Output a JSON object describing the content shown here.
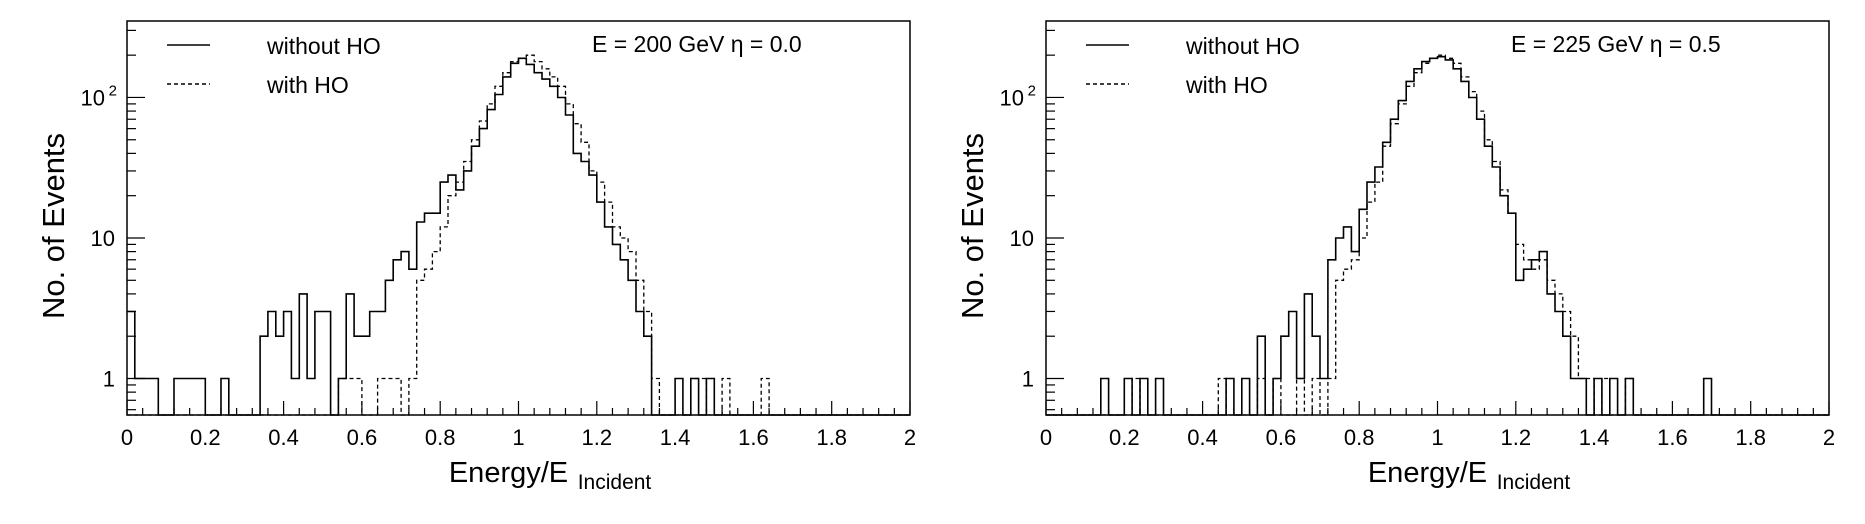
{
  "chart_data": [
    {
      "type": "step-histogram",
      "annotation": "E = 200 GeV  η = 0.0",
      "xlabel_main": "Energy/E",
      "xlabel_sub": "Incident",
      "ylabel": "No. of Events",
      "xlim": [
        0,
        2
      ],
      "ylim": [
        0.55,
        350
      ],
      "yscale": "log",
      "x_ticks": [
        "0",
        "0.2",
        "0.4",
        "0.6",
        "0.8",
        "1",
        "1.2",
        "1.4",
        "1.6",
        "1.8",
        "2"
      ],
      "y_ticks": [
        {
          "value": 1,
          "label": "1"
        },
        {
          "value": 10,
          "label": "10"
        },
        {
          "value": 100,
          "label": "10",
          "sup": "2"
        }
      ],
      "legend_position": "top-left",
      "bin_width": 0.02,
      "series": [
        {
          "name": "without HO",
          "style": "solid",
          "bins": [
            [
              0.0,
              3
            ],
            [
              0.02,
              1
            ],
            [
              0.04,
              1
            ],
            [
              0.06,
              1
            ],
            [
              0.12,
              1
            ],
            [
              0.14,
              1
            ],
            [
              0.16,
              1
            ],
            [
              0.18,
              1
            ],
            [
              0.24,
              1
            ],
            [
              0.34,
              2
            ],
            [
              0.36,
              3
            ],
            [
              0.38,
              2
            ],
            [
              0.4,
              3
            ],
            [
              0.42,
              1
            ],
            [
              0.44,
              4
            ],
            [
              0.46,
              1
            ],
            [
              0.48,
              3
            ],
            [
              0.5,
              3
            ],
            [
              0.54,
              1
            ],
            [
              0.56,
              4
            ],
            [
              0.58,
              2
            ],
            [
              0.6,
              2
            ],
            [
              0.62,
              3
            ],
            [
              0.64,
              3
            ],
            [
              0.66,
              5
            ],
            [
              0.68,
              7
            ],
            [
              0.7,
              8
            ],
            [
              0.72,
              6
            ],
            [
              0.74,
              13
            ],
            [
              0.76,
              15
            ],
            [
              0.78,
              15
            ],
            [
              0.8,
              25
            ],
            [
              0.82,
              28
            ],
            [
              0.84,
              22
            ],
            [
              0.86,
              30
            ],
            [
              0.88,
              45
            ],
            [
              0.9,
              60
            ],
            [
              0.92,
              82
            ],
            [
              0.94,
              105
            ],
            [
              0.96,
              140
            ],
            [
              0.98,
              175
            ],
            [
              1.0,
              190
            ],
            [
              1.02,
              172
            ],
            [
              1.04,
              150
            ],
            [
              1.06,
              135
            ],
            [
              1.08,
              120
            ],
            [
              1.1,
              100
            ],
            [
              1.12,
              75
            ],
            [
              1.14,
              40
            ],
            [
              1.16,
              35
            ],
            [
              1.18,
              28
            ],
            [
              1.2,
              18
            ],
            [
              1.22,
              12
            ],
            [
              1.24,
              9
            ],
            [
              1.26,
              7
            ],
            [
              1.28,
              5
            ],
            [
              1.3,
              3
            ],
            [
              1.32,
              2
            ],
            [
              1.4,
              1
            ],
            [
              1.44,
              1
            ],
            [
              1.48,
              1
            ]
          ]
        },
        {
          "name": "with HO",
          "style": "dashed",
          "bins": [
            [
              0.54,
              1
            ],
            [
              0.56,
              1
            ],
            [
              0.58,
              1
            ],
            [
              0.64,
              1
            ],
            [
              0.66,
              1
            ],
            [
              0.68,
              1
            ],
            [
              0.72,
              1
            ],
            [
              0.74,
              5
            ],
            [
              0.76,
              6
            ],
            [
              0.78,
              8
            ],
            [
              0.8,
              12
            ],
            [
              0.82,
              20
            ],
            [
              0.84,
              25
            ],
            [
              0.86,
              35
            ],
            [
              0.88,
              50
            ],
            [
              0.9,
              68
            ],
            [
              0.92,
              90
            ],
            [
              0.94,
              120
            ],
            [
              0.96,
              150
            ],
            [
              0.98,
              180
            ],
            [
              1.0,
              190
            ],
            [
              1.02,
              200
            ],
            [
              1.04,
              180
            ],
            [
              1.06,
              160
            ],
            [
              1.08,
              140
            ],
            [
              1.1,
              120
            ],
            [
              1.12,
              90
            ],
            [
              1.14,
              65
            ],
            [
              1.16,
              48
            ],
            [
              1.18,
              30
            ],
            [
              1.2,
              25
            ],
            [
              1.22,
              18
            ],
            [
              1.24,
              12
            ],
            [
              1.26,
              10
            ],
            [
              1.28,
              8
            ],
            [
              1.3,
              5
            ],
            [
              1.32,
              3
            ],
            [
              1.34,
              1
            ],
            [
              1.44,
              1
            ],
            [
              1.46,
              1
            ],
            [
              1.52,
              1
            ],
            [
              1.62,
              1
            ]
          ]
        }
      ]
    },
    {
      "type": "step-histogram",
      "annotation": "E = 225 GeV  η = 0.5",
      "xlabel_main": "Energy/E",
      "xlabel_sub": "Incident",
      "ylabel": "No. of Events",
      "xlim": [
        0,
        2
      ],
      "ylim": [
        0.55,
        350
      ],
      "yscale": "log",
      "x_ticks": [
        "0",
        "0.2",
        "0.4",
        "0.6",
        "0.8",
        "1",
        "1.2",
        "1.4",
        "1.6",
        "1.8",
        "2"
      ],
      "y_ticks": [
        {
          "value": 1,
          "label": "1"
        },
        {
          "value": 10,
          "label": "10"
        },
        {
          "value": 100,
          "label": "10",
          "sup": "2"
        }
      ],
      "legend_position": "top-left",
      "bin_width": 0.02,
      "series": [
        {
          "name": "without HO",
          "style": "solid",
          "bins": [
            [
              0.14,
              1
            ],
            [
              0.2,
              1
            ],
            [
              0.24,
              1
            ],
            [
              0.28,
              1
            ],
            [
              0.46,
              1
            ],
            [
              0.5,
              1
            ],
            [
              0.54,
              2
            ],
            [
              0.58,
              1
            ],
            [
              0.6,
              2
            ],
            [
              0.62,
              3
            ],
            [
              0.64,
              1
            ],
            [
              0.66,
              4
            ],
            [
              0.68,
              2
            ],
            [
              0.7,
              1
            ],
            [
              0.72,
              7
            ],
            [
              0.74,
              10
            ],
            [
              0.76,
              12
            ],
            [
              0.78,
              8
            ],
            [
              0.8,
              16
            ],
            [
              0.82,
              25
            ],
            [
              0.84,
              32
            ],
            [
              0.86,
              48
            ],
            [
              0.88,
              70
            ],
            [
              0.9,
              95
            ],
            [
              0.92,
              130
            ],
            [
              0.94,
              160
            ],
            [
              0.96,
              180
            ],
            [
              0.98,
              190
            ],
            [
              1.0,
              195
            ],
            [
              1.02,
              185
            ],
            [
              1.04,
              160
            ],
            [
              1.06,
              130
            ],
            [
              1.08,
              100
            ],
            [
              1.1,
              70
            ],
            [
              1.12,
              45
            ],
            [
              1.14,
              32
            ],
            [
              1.16,
              20
            ],
            [
              1.18,
              15
            ],
            [
              1.2,
              5
            ],
            [
              1.22,
              6
            ],
            [
              1.24,
              7
            ],
            [
              1.26,
              8
            ],
            [
              1.28,
              4
            ],
            [
              1.3,
              3
            ],
            [
              1.32,
              2
            ],
            [
              1.34,
              1
            ],
            [
              1.36,
              1
            ],
            [
              1.4,
              1
            ],
            [
              1.44,
              1
            ],
            [
              1.48,
              1
            ],
            [
              1.68,
              1
            ]
          ]
        },
        {
          "name": "with HO",
          "style": "dashed",
          "bins": [
            [
              0.22,
              1
            ],
            [
              0.44,
              1
            ],
            [
              0.54,
              1
            ],
            [
              0.58,
              1
            ],
            [
              0.64,
              1
            ],
            [
              0.68,
              1
            ],
            [
              0.72,
              1
            ],
            [
              0.74,
              5
            ],
            [
              0.76,
              6
            ],
            [
              0.78,
              7
            ],
            [
              0.8,
              10
            ],
            [
              0.82,
              18
            ],
            [
              0.84,
              25
            ],
            [
              0.86,
              45
            ],
            [
              0.88,
              65
            ],
            [
              0.9,
              90
            ],
            [
              0.92,
              120
            ],
            [
              0.94,
              150
            ],
            [
              0.96,
              175
            ],
            [
              0.98,
              190
            ],
            [
              1.0,
              200
            ],
            [
              1.02,
              190
            ],
            [
              1.04,
              175
            ],
            [
              1.06,
              140
            ],
            [
              1.08,
              110
            ],
            [
              1.1,
              80
            ],
            [
              1.12,
              50
            ],
            [
              1.14,
              35
            ],
            [
              1.16,
              22
            ],
            [
              1.18,
              15
            ],
            [
              1.2,
              9
            ],
            [
              1.22,
              7
            ],
            [
              1.24,
              6
            ],
            [
              1.26,
              7
            ],
            [
              1.28,
              5
            ],
            [
              1.3,
              4
            ],
            [
              1.32,
              3
            ],
            [
              1.34,
              2
            ],
            [
              1.36,
              1
            ],
            [
              1.38,
              1
            ],
            [
              1.42,
              1
            ],
            [
              1.48,
              1
            ]
          ]
        }
      ]
    }
  ]
}
